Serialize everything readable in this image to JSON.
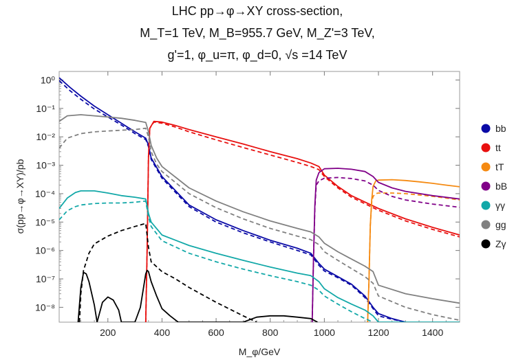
{
  "chart_data": {
    "type": "line",
    "title_lines": [
      "LHC pp→φ→XY cross-section,",
      "M_T=1 TeV, M_B=955.7 GeV, M_Z'=3 TeV,",
      "g'=1, φ_u=π, φ_d=0, √s =14 TeV"
    ],
    "xlabel": "M_φ/GeV",
    "ylabel": "σ(pp→φ→XY)/pb",
    "xlim": [
      20,
      1500
    ],
    "ylim": [
      3e-09,
      2
    ],
    "yscale": "log",
    "x_ticks": [
      200,
      400,
      600,
      800,
      1000,
      1200,
      1400
    ],
    "y_ticks": [
      {
        "value": 1e-08,
        "label": "10⁻⁸"
      },
      {
        "value": 1e-07,
        "label": "10⁻⁷"
      },
      {
        "value": 1e-06,
        "label": "10⁻⁶"
      },
      {
        "value": 1e-05,
        "label": "10⁻⁵"
      },
      {
        "value": 0.0001,
        "label": "10⁻⁴"
      },
      {
        "value": 0.001,
        "label": "10⁻³"
      },
      {
        "value": 0.01,
        "label": "10⁻²"
      },
      {
        "value": 0.1,
        "label": "10⁻¹"
      },
      {
        "value": 1,
        "label": "10⁰"
      }
    ],
    "legend_position": "right",
    "series": [
      {
        "name": "bb",
        "color": "#0a0aa6",
        "style": "solid",
        "x": [
          20,
          60,
          100,
          150,
          200,
          250,
          300,
          340,
          350,
          360,
          400,
          500,
          600,
          700,
          800,
          900,
          950,
          980,
          1000,
          1050,
          1100,
          1150,
          1180,
          1200,
          1250,
          1300
        ],
        "y": [
          1.2,
          0.55,
          0.27,
          0.12,
          0.06,
          0.03,
          0.015,
          0.009,
          0.005,
          0.0018,
          0.0004,
          4e-05,
          1.2e-05,
          5e-06,
          2.3e-06,
          1.2e-06,
          8e-07,
          3.5e-07,
          2.2e-07,
          1.2e-07,
          6.5e-08,
          2.5e-08,
          1e-08,
          6e-09,
          4e-09,
          3e-09
        ]
      },
      {
        "name": "bb",
        "color": "#0a0aa6",
        "style": "dashed",
        "x": [
          20,
          60,
          100,
          150,
          200,
          250,
          300,
          340,
          350,
          360,
          400,
          500,
          600,
          700,
          800,
          900,
          950,
          980,
          1000,
          1050,
          1100,
          1150,
          1180,
          1200,
          1250,
          1300
        ],
        "y": [
          0.95,
          0.42,
          0.21,
          0.095,
          0.05,
          0.026,
          0.013,
          0.008,
          0.0045,
          0.0016,
          0.00035,
          3.5e-05,
          1e-05,
          4.2e-06,
          2e-06,
          1e-06,
          7e-07,
          3e-07,
          1.9e-07,
          1.1e-07,
          6e-08,
          2.2e-08,
          9e-09,
          5e-09,
          3.8e-09,
          3e-09
        ]
      },
      {
        "name": "tt",
        "color": "#e8100f",
        "style": "solid",
        "x": [
          340,
          345,
          350,
          355,
          370,
          400,
          450,
          500,
          600,
          700,
          800,
          900,
          950,
          980,
          1000,
          1050,
          1100,
          1200,
          1300,
          1400,
          1500
        ],
        "y": [
          3e-09,
          1e-06,
          0.002,
          0.02,
          0.035,
          0.033,
          0.025,
          0.018,
          0.01,
          0.0056,
          0.003,
          0.0017,
          0.0012,
          0.0009,
          0.00045,
          0.00018,
          8.5e-05,
          3e-05,
          1.3e-05,
          6.5e-06,
          3.5e-06
        ]
      },
      {
        "name": "tt",
        "color": "#e8100f",
        "style": "dashed",
        "x": [
          340,
          345,
          350,
          355,
          370,
          400,
          450,
          500,
          600,
          700,
          800,
          900,
          950,
          980,
          1000,
          1050,
          1100,
          1200,
          1300,
          1400,
          1500
        ],
        "y": [
          3e-09,
          1e-06,
          0.002,
          0.02,
          0.033,
          0.03,
          0.022,
          0.015,
          0.0078,
          0.0042,
          0.0023,
          0.00125,
          0.0009,
          0.0007,
          0.0004,
          0.00016,
          7.5e-05,
          2.6e-05,
          1.1e-05,
          5.5e-06,
          3e-06
        ]
      },
      {
        "name": "tT",
        "color": "#f58a12",
        "style": "solid",
        "x": [
          1160,
          1165,
          1170,
          1175,
          1180,
          1190,
          1200,
          1250,
          1300,
          1350,
          1400,
          1450,
          1500
        ],
        "y": [
          3e-09,
          1e-07,
          8e-06,
          6e-05,
          0.00018,
          0.00028,
          0.0003,
          0.00031,
          0.00029,
          0.00026,
          0.00023,
          0.0002,
          0.000175
        ]
      },
      {
        "name": "tT",
        "color": "#f58a12",
        "style": "dashed",
        "x": [
          1160,
          1165,
          1170,
          1175,
          1180,
          1190,
          1200,
          1250,
          1300,
          1350,
          1400,
          1450,
          1500
        ],
        "y": [
          3e-09,
          1e-07,
          8e-06,
          5e-05,
          8e-05,
          0.0001,
          0.000105,
          0.000105,
          0.0001,
          9e-05,
          8e-05,
          7e-05,
          6e-05
        ]
      },
      {
        "name": "bB",
        "color": "#800088",
        "style": "solid",
        "x": [
          955,
          960,
          965,
          970,
          980,
          1000,
          1050,
          1100,
          1150,
          1180,
          1200,
          1250,
          1300,
          1400,
          1500
        ],
        "y": [
          3e-09,
          5e-07,
          4e-05,
          0.0003,
          0.00055,
          0.00075,
          0.00078,
          0.00072,
          0.0006,
          0.0004,
          0.00025,
          0.00016,
          0.00012,
          8.5e-05,
          6.5e-05
        ]
      },
      {
        "name": "bB",
        "color": "#800088",
        "style": "dashed",
        "x": [
          955,
          960,
          965,
          970,
          980,
          1000,
          1050,
          1100,
          1150,
          1180,
          1200,
          1250,
          1300,
          1400,
          1500
        ],
        "y": [
          3e-09,
          5e-07,
          3e-05,
          0.0002,
          0.00028,
          0.00035,
          0.00037,
          0.00034,
          0.00028,
          0.0002,
          0.00013,
          8e-05,
          6e-05,
          4.3e-05,
          3.3e-05
        ]
      },
      {
        "name": "γγ",
        "color": "#12a8a8",
        "style": "solid",
        "x": [
          20,
          50,
          80,
          100,
          150,
          200,
          250,
          300,
          340,
          350,
          360,
          400,
          500,
          600,
          700,
          800,
          900,
          950,
          980,
          1000,
          1050,
          1100,
          1150,
          1180,
          1200,
          1300,
          1400,
          1500
        ],
        "y": [
          3e-05,
          7e-05,
          0.00011,
          0.000125,
          0.000125,
          0.000105,
          8.5e-05,
          7.5e-05,
          6.5e-05,
          2e-05,
          1e-05,
          3.5e-06,
          1.5e-06,
          8e-07,
          4.5e-07,
          2.6e-07,
          1.6e-07,
          1.3e-07,
          8e-08,
          4.5e-08,
          2.2e-08,
          1.3e-08,
          8e-09,
          5e-09,
          3e-09,
          3e-09,
          3e-09,
          3e-09
        ]
      },
      {
        "name": "γγ",
        "color": "#12a8a8",
        "style": "dashed",
        "x": [
          20,
          50,
          80,
          100,
          150,
          200,
          250,
          300,
          340,
          350,
          360,
          400,
          500,
          600,
          700,
          800,
          900,
          950,
          980,
          1000,
          1050,
          1100,
          1150,
          1180
        ],
        "y": [
          1.2e-05,
          2.5e-05,
          3.5e-05,
          4e-05,
          4.5e-05,
          4.7e-05,
          4.7e-05,
          5e-05,
          5.5e-05,
          1.5e-05,
          7e-06,
          2.2e-06,
          8e-07,
          4e-07,
          2.2e-07,
          1.3e-07,
          8e-08,
          6e-08,
          4e-08,
          2.5e-08,
          1.3e-08,
          7e-09,
          4e-09,
          3e-09
        ]
      },
      {
        "name": "gg",
        "color": "#808080",
        "style": "solid",
        "x": [
          20,
          50,
          100,
          150,
          200,
          250,
          300,
          340,
          350,
          360,
          380,
          400,
          500,
          600,
          700,
          800,
          900,
          950,
          980,
          1000,
          1050,
          1100,
          1150,
          1180,
          1200,
          1300,
          1400,
          1500
        ],
        "y": [
          0.035,
          0.055,
          0.06,
          0.055,
          0.05,
          0.045,
          0.038,
          0.032,
          0.015,
          0.005,
          0.0018,
          0.0009,
          0.00016,
          5.5e-05,
          2.3e-05,
          1.1e-05,
          6e-06,
          4.5e-06,
          3e-06,
          1.8e-06,
          9e-07,
          5e-07,
          2.8e-07,
          1.8e-07,
          6e-08,
          3e-08,
          2e-08,
          1.4e-08
        ]
      },
      {
        "name": "gg",
        "color": "#808080",
        "style": "dashed",
        "x": [
          20,
          50,
          100,
          150,
          200,
          250,
          300,
          340,
          350,
          360,
          380,
          400,
          500,
          600,
          700,
          800,
          900,
          950,
          980,
          1000,
          1050,
          1100,
          1150,
          1180,
          1200,
          1300,
          1400,
          1500
        ],
        "y": [
          0.004,
          0.009,
          0.013,
          0.015,
          0.016,
          0.017,
          0.018,
          0.02,
          0.01,
          0.003,
          0.0011,
          0.0006,
          0.0001,
          3.2e-05,
          1.3e-05,
          6e-06,
          3.2e-06,
          2.4e-06,
          1.6e-06,
          9e-07,
          4.5e-07,
          2.3e-07,
          1.2e-07,
          7e-08,
          2.5e-08,
          1e-08,
          5.5e-09,
          3.5e-09
        ]
      },
      {
        "name": "Zγ",
        "color": "#000000",
        "style": "solid",
        "x": [
          90,
          100,
          110,
          120,
          130,
          150,
          160,
          180,
          200,
          220,
          240,
          250,
          260,
          300,
          320,
          340,
          345,
          350,
          360,
          380,
          400,
          430,
          460,
          700,
          750,
          800,
          850,
          900,
          950,
          975
        ],
        "y": [
          3e-09,
          5e-08,
          1.7e-07,
          1.5e-07,
          8e-08,
          1.2e-08,
          3e-09,
          1.5e-08,
          2.3e-08,
          1.8e-08,
          8e-09,
          3e-09,
          3e-09,
          3e-09,
          1e-08,
          1.5e-07,
          2e-07,
          1.8e-07,
          8e-08,
          2.5e-08,
          9e-09,
          5e-09,
          3e-09,
          3e-09,
          4.5e-09,
          5e-09,
          5e-09,
          4.5e-09,
          4e-09,
          3e-09
        ]
      },
      {
        "name": "Zγ",
        "color": "#000000",
        "style": "dashed",
        "x": [
          95,
          100,
          110,
          130,
          150,
          200,
          250,
          300,
          340,
          350,
          360,
          400,
          450,
          500,
          600,
          700,
          750
        ],
        "y": [
          3e-09,
          3e-08,
          2e-07,
          8e-07,
          1.7e-06,
          3.2e-06,
          5e-06,
          7e-06,
          9e-06,
          1.3e-06,
          4e-07,
          1.8e-07,
          1e-07,
          5e-08,
          1.5e-08,
          5e-09,
          3e-09
        ]
      }
    ],
    "legend": [
      {
        "label": "bb",
        "color": "#0a0aa6"
      },
      {
        "label": "tt",
        "color": "#e8100f"
      },
      {
        "label": "tT",
        "color": "#f58a12"
      },
      {
        "label": "bB",
        "color": "#800088"
      },
      {
        "label": "γγ",
        "color": "#12a8a8"
      },
      {
        "label": "gg",
        "color": "#808080"
      },
      {
        "label": "Zγ",
        "color": "#000000"
      }
    ]
  }
}
